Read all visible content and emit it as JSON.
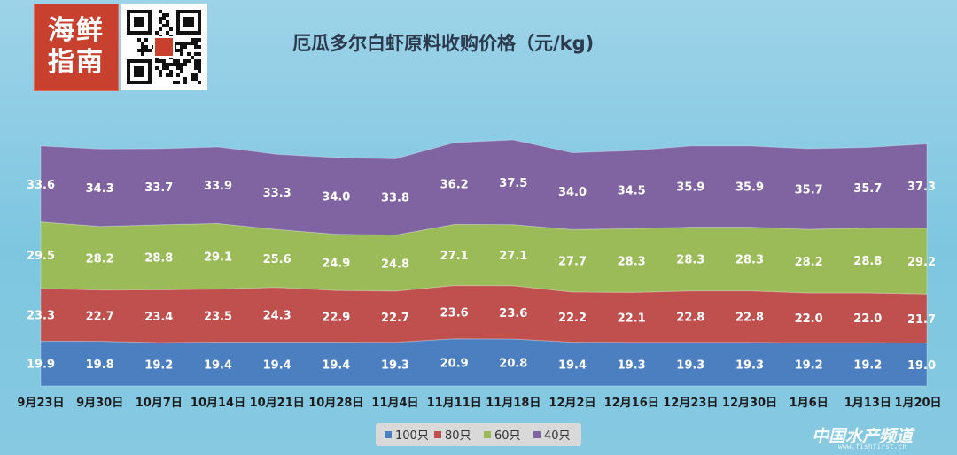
{
  "title": "厄瓜多尔白虾原料收购价格（元/kg)",
  "logo": {
    "text_line1": "海鲜",
    "text_line2": "指南"
  },
  "watermark": {
    "text": "中国水产频道",
    "sub": "www.fishfirst.cn"
  },
  "colors": {
    "100": "#4c7fbf",
    "80": "#c0504d",
    "60": "#9bbb59",
    "40": "#8064a2",
    "label": "#ffffff",
    "axis_label": "#1a1a1a",
    "legend_bg": "#d9d9d9"
  },
  "chart_data": {
    "type": "area",
    "stacked": true,
    "title": "厄瓜多尔白虾原料收购价格（元/kg)",
    "categories": [
      "9月23日",
      "9月30日",
      "10月7日",
      "10月14日",
      "10月21日",
      "10月28日",
      "11月4日",
      "11月11日",
      "11月18日",
      "12月2日",
      "12月16日",
      "12月23日",
      "12月30日",
      "1月6日",
      "1月13日",
      "1月20日"
    ],
    "series": [
      {
        "name": "100只",
        "values": [
          19.9,
          19.8,
          19.2,
          19.4,
          19.4,
          19.4,
          19.3,
          20.9,
          20.8,
          19.4,
          19.3,
          19.3,
          19.3,
          19.2,
          19.2,
          19.0
        ]
      },
      {
        "name": "80只",
        "values": [
          23.3,
          22.7,
          23.4,
          23.5,
          24.3,
          22.9,
          22.7,
          23.6,
          23.6,
          22.2,
          22.1,
          22.8,
          22.8,
          22.0,
          22.0,
          21.7
        ]
      },
      {
        "name": "60只",
        "values": [
          29.5,
          28.2,
          28.8,
          29.1,
          25.6,
          24.9,
          24.8,
          27.1,
          27.1,
          27.7,
          28.3,
          28.3,
          28.3,
          28.2,
          28.8,
          29.2
        ]
      },
      {
        "name": "40只",
        "values": [
          33.6,
          34.3,
          33.7,
          33.9,
          33.3,
          34.0,
          33.8,
          36.2,
          37.5,
          34.0,
          34.5,
          35.9,
          35.9,
          35.7,
          35.7,
          37.3
        ]
      }
    ],
    "labels": [
      [
        "19.9",
        "19.8",
        "19.2",
        "19.4",
        "19.4",
        "19.4",
        "19.3",
        "20.9",
        "20.8",
        "19.4",
        "19.3",
        "19.3",
        "19.3",
        "19.2",
        "19.2",
        "19.0"
      ],
      [
        "23.3",
        "22.7",
        "23.4",
        "23.5",
        "24.3",
        "22.9",
        "22.7",
        "23.6",
        "23.6",
        "22.2",
        "22.1",
        "22.8",
        "22.8",
        "22.0",
        "22.0",
        "21.7"
      ],
      [
        "29.5",
        "28.2",
        "28.8",
        "29.1",
        "25.6",
        "24.9",
        "24.8",
        "27.1",
        "27.1",
        "27.7",
        "28.3",
        "28.3",
        "28.3",
        "28.2",
        "28.8",
        "29.2"
      ],
      [
        "33.6",
        "34.3",
        "33.7",
        "33.9",
        "33.3",
        "34.0",
        "33.8",
        "36.2",
        "37.5",
        "34.0",
        "34.5",
        "35.9",
        "35.9",
        "35.7",
        "35.7",
        "37.3"
      ]
    ],
    "legend": [
      "100只",
      "80只",
      "60只",
      "40只"
    ],
    "legend_position": "bottom",
    "grid": false
  }
}
